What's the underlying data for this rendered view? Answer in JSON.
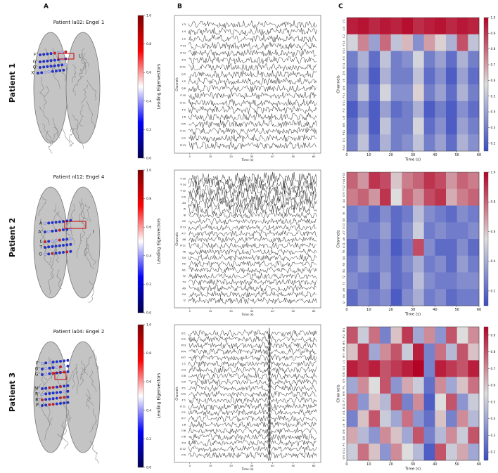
{
  "panel_labels": [
    "A",
    "B",
    "C"
  ],
  "eig_label": "Leading Eigenvectors",
  "channels_label": "Channels",
  "time_label": "Time (s)",
  "eig_lim": [
    0,
    1
  ],
  "eig_ticks": [
    {
      "value": 0,
      "label": "0.0"
    },
    0.2,
    0.4,
    0.6,
    0.8,
    {
      "value": 1,
      "label": "1.0"
    }
  ],
  "trace_xlim": [
    -4,
    62
  ],
  "heat_xlim": [
    0,
    60
  ],
  "time_ticks": [
    0,
    10,
    20,
    30,
    40,
    50,
    60
  ],
  "patients": [
    {
      "label": "Patient 1",
      "title": "Patient la02: Engel 1",
      "electrodes": [
        "F'",
        "G'",
        "Q'",
        "X'",
        "L'"
      ],
      "channels": [
        {
          "name": "L'3",
          "color": "#d62728"
        },
        {
          "name": "L'4",
          "color": "#d62728"
        },
        {
          "name": "L'2",
          "color": "#d62728"
        },
        {
          "name": "Y'14",
          "color": "#111111"
        },
        {
          "name": "X'13",
          "color": "#111111"
        },
        {
          "name": "X'3",
          "color": "#111111"
        },
        {
          "name": "Q'11",
          "color": "#111111"
        },
        {
          "name": "Q'5",
          "color": "#111111"
        },
        {
          "name": "L'5",
          "color": "#111111"
        },
        {
          "name": "Q'8",
          "color": "#111111"
        },
        {
          "name": "F'10",
          "color": "#111111"
        },
        {
          "name": "G'11",
          "color": "#111111"
        },
        {
          "name": "F'2",
          "color": "#111111"
        },
        {
          "name": "L'8",
          "color": "#111111"
        },
        {
          "name": "N'5",
          "color": "#111111"
        },
        {
          "name": "F'11",
          "color": "#111111"
        },
        {
          "name": "G'2",
          "color": "#111111"
        },
        {
          "name": "R'13",
          "color": "#111111"
        }
      ],
      "heatmap": {
        "clim": [
          0.15,
          1.0
        ],
        "ticks": [
          0.2,
          0.3,
          0.4,
          0.5,
          0.6,
          0.7,
          0.8,
          0.9,
          {
            "value": 1,
            "label": "1.0"
          }
        ],
        "values": [
          [
            0.95,
            0.97,
            0.93,
            0.96,
            0.94,
            0.98,
            0.92,
            0.95,
            0.97,
            0.93,
            0.96,
            0.94
          ],
          [
            0.55,
            0.75,
            0.4,
            0.8,
            0.5,
            0.65,
            0.35,
            0.7,
            0.6,
            0.45,
            0.85,
            0.5
          ],
          [
            0.3,
            0.45,
            0.25,
            0.5,
            0.3,
            0.35,
            0.55,
            0.3,
            0.4,
            0.25,
            0.45,
            0.3
          ],
          [
            0.25,
            0.4,
            0.2,
            0.45,
            0.3,
            0.3,
            0.5,
            0.25,
            0.35,
            0.2,
            0.4,
            0.25
          ],
          [
            0.3,
            0.5,
            0.25,
            0.55,
            0.35,
            0.35,
            0.6,
            0.3,
            0.4,
            0.25,
            0.45,
            0.3
          ],
          [
            0.2,
            0.35,
            0.2,
            0.4,
            0.25,
            0.3,
            0.45,
            0.2,
            0.3,
            0.2,
            0.35,
            0.25
          ],
          [
            0.25,
            0.45,
            0.2,
            0.5,
            0.3,
            0.3,
            0.55,
            0.25,
            0.35,
            0.2,
            0.4,
            0.3
          ],
          [
            0.3,
            0.5,
            0.25,
            0.45,
            0.3,
            0.35,
            0.5,
            0.3,
            0.4,
            0.25,
            0.45,
            0.35
          ]
        ]
      }
    },
    {
      "label": "Patient 2",
      "title": "Patient nl12: Engel 4",
      "electrodes": [
        "A",
        "A'",
        "L",
        "T",
        "O",
        "I"
      ],
      "channels": [
        {
          "name": "Y'10",
          "color": "#111111"
        },
        {
          "name": "Y'14",
          "color": "#111111"
        },
        {
          "name": "Y'12",
          "color": "#111111"
        },
        {
          "name": "G'9",
          "color": "#111111"
        },
        {
          "name": "A4",
          "color": "#d62728"
        },
        {
          "name": "I5",
          "color": "#d62728"
        },
        {
          "name": "I6",
          "color": "#111111"
        },
        {
          "name": "G5",
          "color": "#111111"
        },
        {
          "name": "X'13",
          "color": "#111111"
        },
        {
          "name": "A'7",
          "color": "#111111"
        },
        {
          "name": "A8",
          "color": "#d62728"
        },
        {
          "name": "A'11",
          "color": "#d62728"
        },
        {
          "name": "T6",
          "color": "#d62728"
        },
        {
          "name": "Q4",
          "color": "#111111"
        },
        {
          "name": "R5",
          "color": "#111111"
        },
        {
          "name": "B1",
          "color": "#111111"
        },
        {
          "name": "T2",
          "color": "#111111"
        },
        {
          "name": "T3",
          "color": "#111111"
        },
        {
          "name": "A9",
          "color": "#111111"
        },
        {
          "name": "O4",
          "color": "#111111"
        },
        {
          "name": "I2",
          "color": "#111111"
        }
      ],
      "heatmap": {
        "clim": [
          0.1,
          1.0
        ],
        "ticks": [
          0.2,
          0.4,
          0.6,
          0.8,
          {
            "value": 1,
            "label": "1.0"
          }
        ],
        "values": [
          [
            0.8,
            0.7,
            0.9,
            0.85,
            0.6,
            0.75,
            0.8,
            0.9,
            0.85,
            0.7,
            0.8,
            0.75
          ],
          [
            0.75,
            0.8,
            0.7,
            0.9,
            0.55,
            0.8,
            0.7,
            0.85,
            0.9,
            0.65,
            0.75,
            0.8
          ],
          [
            0.25,
            0.3,
            0.2,
            0.3,
            0.2,
            0.25,
            0.45,
            0.3,
            0.25,
            0.2,
            0.3,
            0.25
          ],
          [
            0.3,
            0.25,
            0.25,
            0.35,
            0.2,
            0.3,
            0.5,
            0.25,
            0.3,
            0.25,
            0.25,
            0.3
          ],
          [
            0.2,
            0.3,
            0.2,
            0.3,
            0.15,
            0.25,
            0.85,
            0.3,
            0.2,
            0.2,
            0.3,
            0.2
          ],
          [
            0.25,
            0.35,
            0.25,
            0.3,
            0.2,
            0.3,
            0.4,
            0.25,
            0.3,
            0.2,
            0.35,
            0.25
          ],
          [
            0.3,
            0.25,
            0.2,
            0.35,
            0.2,
            0.25,
            0.45,
            0.3,
            0.25,
            0.25,
            0.3,
            0.3
          ],
          [
            0.2,
            0.3,
            0.25,
            0.3,
            0.15,
            0.3,
            0.4,
            0.25,
            0.3,
            0.2,
            0.25,
            0.25
          ]
        ]
      }
    },
    {
      "label": "Patient 3",
      "title": "Patient la04: Engel 2",
      "electrodes": [
        "F'",
        "O'",
        "G'",
        "M'",
        "R'",
        "B'",
        "P'"
      ],
      "channels": [
        {
          "name": "B'1",
          "color": "#111111"
        },
        {
          "name": "R'2",
          "color": "#e69f00"
        },
        {
          "name": "M'3",
          "color": "#e69f00"
        },
        {
          "name": "M'4",
          "color": "#e69f00"
        },
        {
          "name": "M'7",
          "color": "#e69f00"
        },
        {
          "name": "L'1",
          "color": "#111111"
        },
        {
          "name": "G'3",
          "color": "#e69f00"
        },
        {
          "name": "G'8",
          "color": "#d62728"
        },
        {
          "name": "G'9",
          "color": "#d62728"
        },
        {
          "name": "P'1",
          "color": "#111111"
        },
        {
          "name": "M'9",
          "color": "#111111"
        },
        {
          "name": "F'1",
          "color": "#111111"
        },
        {
          "name": "G'11",
          "color": "#d62728"
        },
        {
          "name": "G'1",
          "color": "#111111"
        },
        {
          "name": "R'7",
          "color": "#111111"
        },
        {
          "name": "L'8",
          "color": "#111111"
        },
        {
          "name": "O'6",
          "color": "#111111"
        },
        {
          "name": "O'8",
          "color": "#111111"
        },
        {
          "name": "P'3",
          "color": "#111111"
        },
        {
          "name": "G'12",
          "color": "#d62728"
        },
        {
          "name": "O'9",
          "color": "#111111"
        }
      ],
      "heatmap": {
        "clim": [
          0.15,
          0.95
        ],
        "ticks": [
          0.2,
          0.3,
          0.4,
          0.5,
          0.6,
          0.7,
          0.8,
          0.9
        ],
        "values": [
          [
            0.8,
            0.5,
            0.75,
            0.3,
            0.6,
            0.85,
            0.4,
            0.7,
            0.35,
            0.8,
            0.55,
            0.7
          ],
          [
            0.6,
            0.85,
            0.4,
            0.7,
            0.8,
            0.5,
            0.9,
            0.3,
            0.75,
            0.45,
            0.8,
            0.6
          ],
          [
            0.9,
            0.85,
            0.9,
            0.8,
            0.85,
            0.9,
            0.95,
            0.3,
            0.9,
            0.85,
            0.8,
            0.9
          ],
          [
            0.4,
            0.7,
            0.55,
            0.8,
            0.35,
            0.65,
            0.5,
            0.25,
            0.7,
            0.4,
            0.6,
            0.75
          ],
          [
            0.75,
            0.35,
            0.6,
            0.45,
            0.8,
            0.3,
            0.7,
            0.2,
            0.55,
            0.8,
            0.35,
            0.5
          ],
          [
            0.3,
            0.6,
            0.8,
            0.5,
            0.4,
            0.75,
            0.35,
            0.25,
            0.6,
            0.3,
            0.7,
            0.45
          ],
          [
            0.65,
            0.45,
            0.35,
            0.7,
            0.6,
            0.4,
            0.8,
            0.3,
            0.45,
            0.7,
            0.5,
            0.8
          ],
          [
            0.5,
            0.75,
            0.6,
            0.35,
            0.7,
            0.55,
            0.45,
            0.2,
            0.8,
            0.5,
            0.65,
            0.4
          ]
        ]
      }
    }
  ]
}
